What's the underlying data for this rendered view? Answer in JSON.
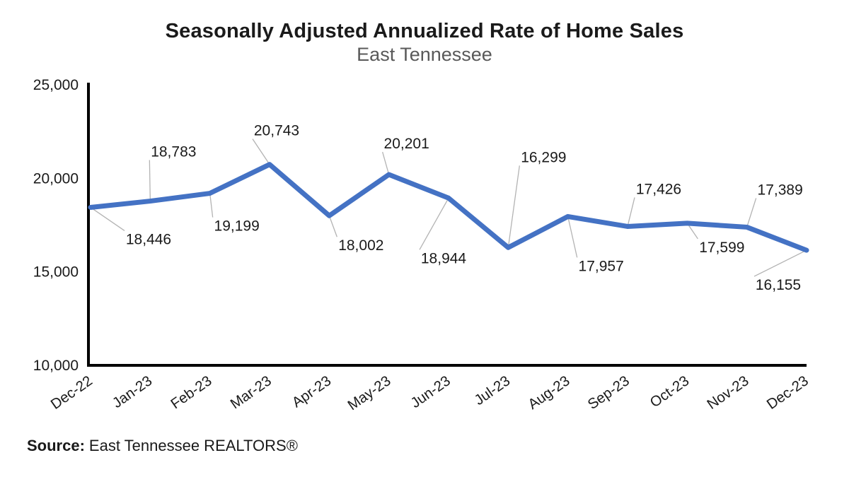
{
  "title": "Seasonally Adjusted Annualized Rate of Home Sales",
  "subtitle": "East Tennessee",
  "source": {
    "label": "Source:",
    "text": "East Tennessee REALTORS®"
  },
  "chart_data": {
    "type": "line",
    "title": "Seasonally Adjusted Annualized Rate of Home Sales",
    "subtitle": "East Tennessee",
    "categories": [
      "Dec-22",
      "Jan-23",
      "Feb-23",
      "Mar-23",
      "Apr-23",
      "May-23",
      "Jun-23",
      "Jul-23",
      "Aug-23",
      "Sep-23",
      "Oct-23",
      "Nov-23",
      "Dec-23"
    ],
    "series": [
      {
        "name": "Seasonally Adjusted Annualized Rate of Home Sales",
        "values": [
          18446,
          18783,
          19199,
          20743,
          18002,
          20201,
          18944,
          16299,
          17957,
          17426,
          17599,
          17389,
          16155
        ]
      }
    ],
    "data_labels": [
      "18,446",
      "18,783",
      "19,199",
      "20,743",
      "18,002",
      "20,201",
      "18,944",
      "16,299",
      "17,957",
      "17,426",
      "17,599",
      "17,389",
      "16,155"
    ],
    "xlabel": "",
    "ylabel": "",
    "ylim": [
      10000,
      25000
    ],
    "yticks": [
      10000,
      15000,
      20000,
      25000
    ],
    "ytick_labels": [
      "10,000",
      "15,000",
      "20,000",
      "25,000"
    ],
    "grid": false,
    "legend": "none",
    "line_color": "#4472C4",
    "axis_color": "#000000",
    "leader_line_color": "#b3b3b3",
    "label_color": "#1a1a1a"
  }
}
